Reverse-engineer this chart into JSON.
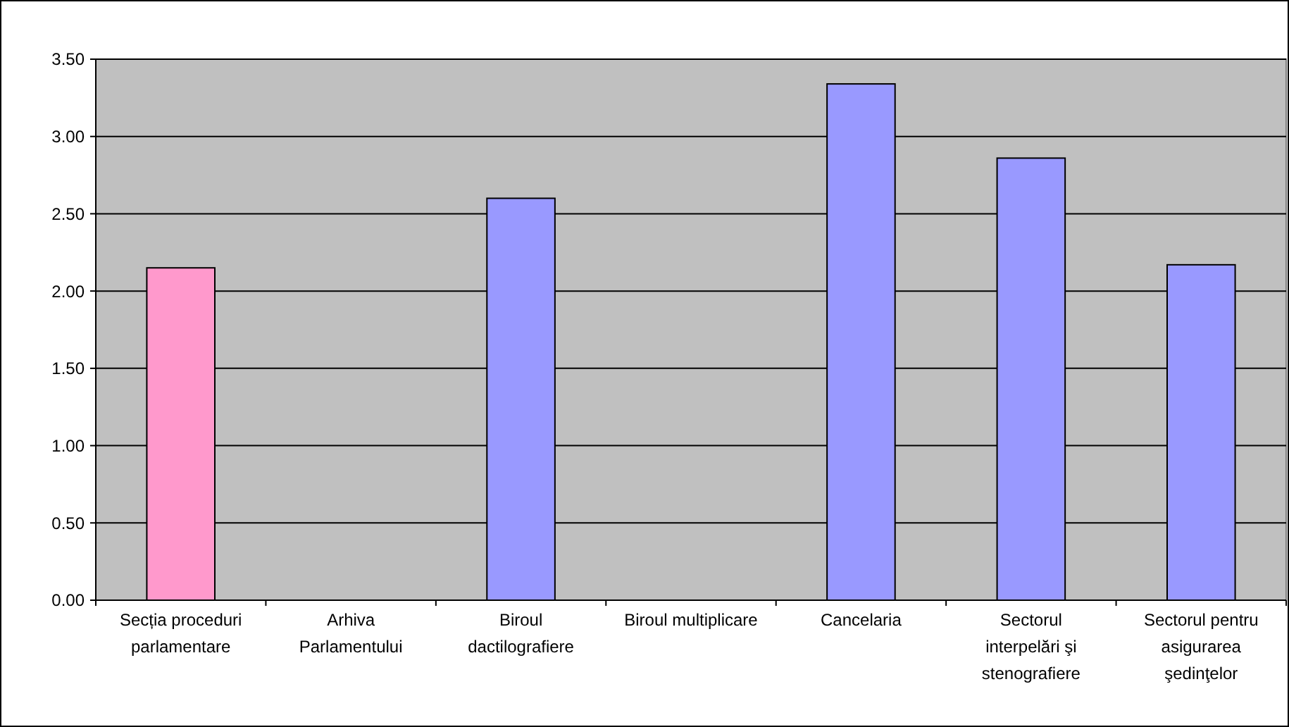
{
  "chart_data": {
    "type": "bar",
    "categories": [
      "Secția proceduri parlamentare",
      "Arhiva Parlamentului",
      "Biroul dactilografiere",
      "Biroul multiplicare",
      "Cancelaria",
      "Sectorul interpelări şi stenografiere",
      "Sectorul pentru asigurarea şedinţelor"
    ],
    "values": [
      2.15,
      null,
      2.6,
      null,
      3.34,
      2.86,
      2.17
    ],
    "colors": [
      "#ff99cc",
      null,
      "#9999ff",
      null,
      "#9999ff",
      "#9999ff",
      "#9999ff"
    ],
    "ylim": [
      0,
      3.5
    ],
    "yticks": [
      {
        "value": 0,
        "label": "0.00"
      },
      {
        "value": 0.5,
        "label": "0.50"
      },
      {
        "value": 1,
        "label": "1.00"
      },
      {
        "value": 1.5,
        "label": "1.50"
      },
      {
        "value": 2,
        "label": "2.00"
      },
      {
        "value": 2.5,
        "label": "2.50"
      },
      {
        "value": 3,
        "label": "3.00"
      },
      {
        "value": 3.5,
        "label": "3.50"
      }
    ],
    "grid": "y"
  }
}
